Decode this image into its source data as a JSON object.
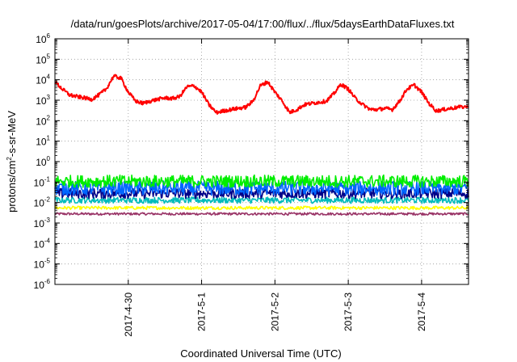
{
  "chart_data": {
    "type": "line",
    "title": "/data/run/goesPlots/archive/2017-05-04/17:00/flux/../flux/5daysEarthDataFluxes.txt",
    "xlabel": "Coordinated Universal Time (UTC)",
    "ylabel": {
      "base": "protons/cm",
      "sup": "2",
      "rest": "-s-sr-MeV"
    },
    "yscale": "log",
    "ylim": [
      1e-06,
      1000000.0
    ],
    "xlim": [
      0,
      5.64
    ],
    "grid": true,
    "y_tick_labels": [
      {
        "base": "10",
        "exp": "-6"
      },
      {
        "base": "10",
        "exp": "-5"
      },
      {
        "base": "10",
        "exp": "-4"
      },
      {
        "base": "10",
        "exp": "-3"
      },
      {
        "base": "10",
        "exp": "-2"
      },
      {
        "base": "10",
        "exp": "-1"
      },
      {
        "base": "10",
        "exp": "0"
      },
      {
        "base": "10",
        "exp": "1"
      },
      {
        "base": "10",
        "exp": "2"
      },
      {
        "base": "10",
        "exp": "3"
      },
      {
        "base": "10",
        "exp": "4"
      },
      {
        "base": "10",
        "exp": "5"
      },
      {
        "base": "10",
        "exp": "6"
      }
    ],
    "x_ticks": [
      {
        "label": "2017-4-30",
        "x": 1
      },
      {
        "label": "2017-5-1",
        "x": 2
      },
      {
        "label": "2017-5-2",
        "x": 3
      },
      {
        "label": "2017-5-3",
        "x": 4
      },
      {
        "label": "2017-5-4",
        "x": 5
      }
    ],
    "series": [
      {
        "color": "#ff0000",
        "x": [
          0.0,
          0.1,
          0.2,
          0.3,
          0.4,
          0.5,
          0.6,
          0.7,
          0.8,
          0.9,
          1.0,
          1.1,
          1.2,
          1.3,
          1.4,
          1.5,
          1.6,
          1.7,
          1.8,
          1.9,
          2.0,
          2.1,
          2.2,
          2.3,
          2.4,
          2.5,
          2.6,
          2.7,
          2.8,
          2.9,
          3.0,
          3.1,
          3.2,
          3.3,
          3.4,
          3.5,
          3.6,
          3.7,
          3.8,
          3.9,
          4.0,
          4.1,
          4.2,
          4.3,
          4.4,
          4.5,
          4.6,
          4.7,
          4.8,
          4.9,
          5.0,
          5.1,
          5.2,
          5.3,
          5.4,
          5.5,
          5.64
        ],
        "y": [
          8000,
          3500,
          1800,
          1500,
          1300,
          1100,
          1800,
          3500,
          15000,
          12000,
          2500,
          900,
          700,
          900,
          1100,
          1300,
          1200,
          1500,
          4500,
          5000,
          2500,
          600,
          250,
          300,
          350,
          400,
          450,
          900,
          5000,
          8000,
          2500,
          900,
          250,
          350,
          600,
          700,
          800,
          900,
          2000,
          6000,
          3500,
          1200,
          600,
          350,
          350,
          400,
          350,
          900,
          3500,
          5500,
          2500,
          700,
          300,
          350,
          400,
          450,
          500
        ]
      },
      {
        "color": "#00ee00",
        "level": 0.11,
        "spread": 0.3
      },
      {
        "color": "#0066ff",
        "level": 0.05,
        "spread": 0.35
      },
      {
        "color": "#000088",
        "level": 0.028,
        "spread": 0.25
      },
      {
        "color": "#00bbbb",
        "level": 0.013,
        "spread": 0.15
      },
      {
        "color": "#ffff00",
        "level": 0.0055,
        "spread": 0.08
      },
      {
        "color": "#993366",
        "level": 0.0028,
        "spread": 0.06
      }
    ]
  }
}
